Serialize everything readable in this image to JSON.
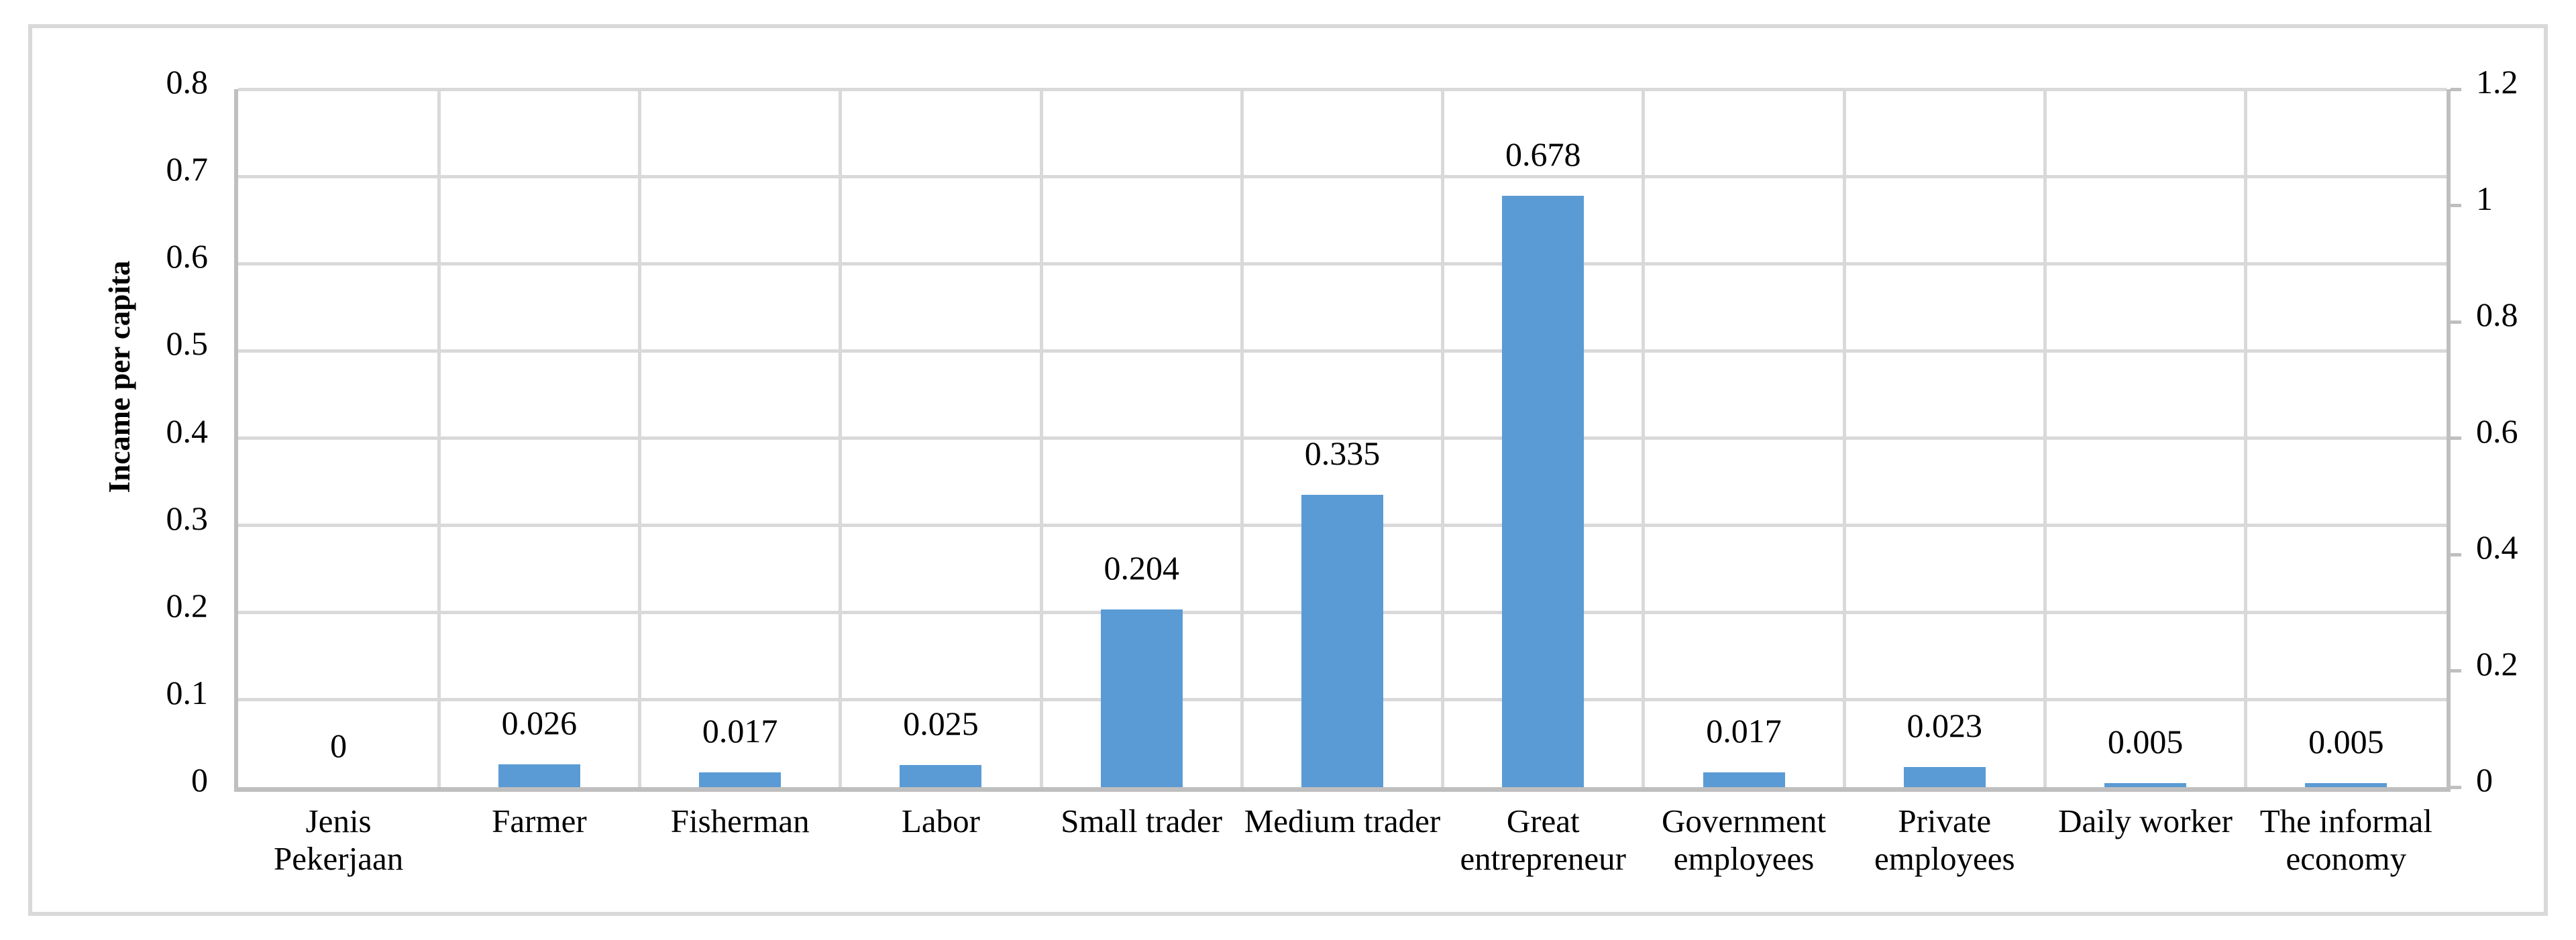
{
  "chart_data": {
    "type": "bar",
    "title": "",
    "ylabel": "Incame per capita",
    "xlabel": "",
    "categories": [
      "Jenis Pekerjaan",
      "Farmer",
      "Fisherman",
      "Labor",
      "Small trader",
      "Medium trader",
      "Great entrepreneur",
      "Government employees",
      "Private employees",
      "Daily worker",
      "The informal economy"
    ],
    "values": [
      0,
      0.026,
      0.017,
      0.025,
      0.204,
      0.335,
      0.678,
      0.017,
      0.023,
      0.005,
      0.005
    ],
    "data_labels": [
      "0",
      "0.026",
      "0.017",
      "0.025",
      "0.204",
      "0.335",
      "0.678",
      "0.017",
      "0.023",
      "0.005",
      "0.005"
    ],
    "left_axis": {
      "min": 0,
      "max": 0.8,
      "step": 0.1,
      "ticks": [
        "0",
        "0.1",
        "0.2",
        "0.3",
        "0.4",
        "0.5",
        "0.6",
        "0.7",
        "0.8"
      ]
    },
    "right_axis": {
      "min": 0,
      "max": 1.2,
      "step": 0.2,
      "ticks": [
        "0",
        "0.2",
        "0.4",
        "0.6",
        "0.8",
        "1",
        "1.2"
      ]
    },
    "grid": "on",
    "legend": "none",
    "bar_color": "#5b9bd5",
    "gridline_color": "#d9d9d9",
    "axis_line_color": "#bfbfbf",
    "figure_border_color": "#d9d9d9"
  }
}
